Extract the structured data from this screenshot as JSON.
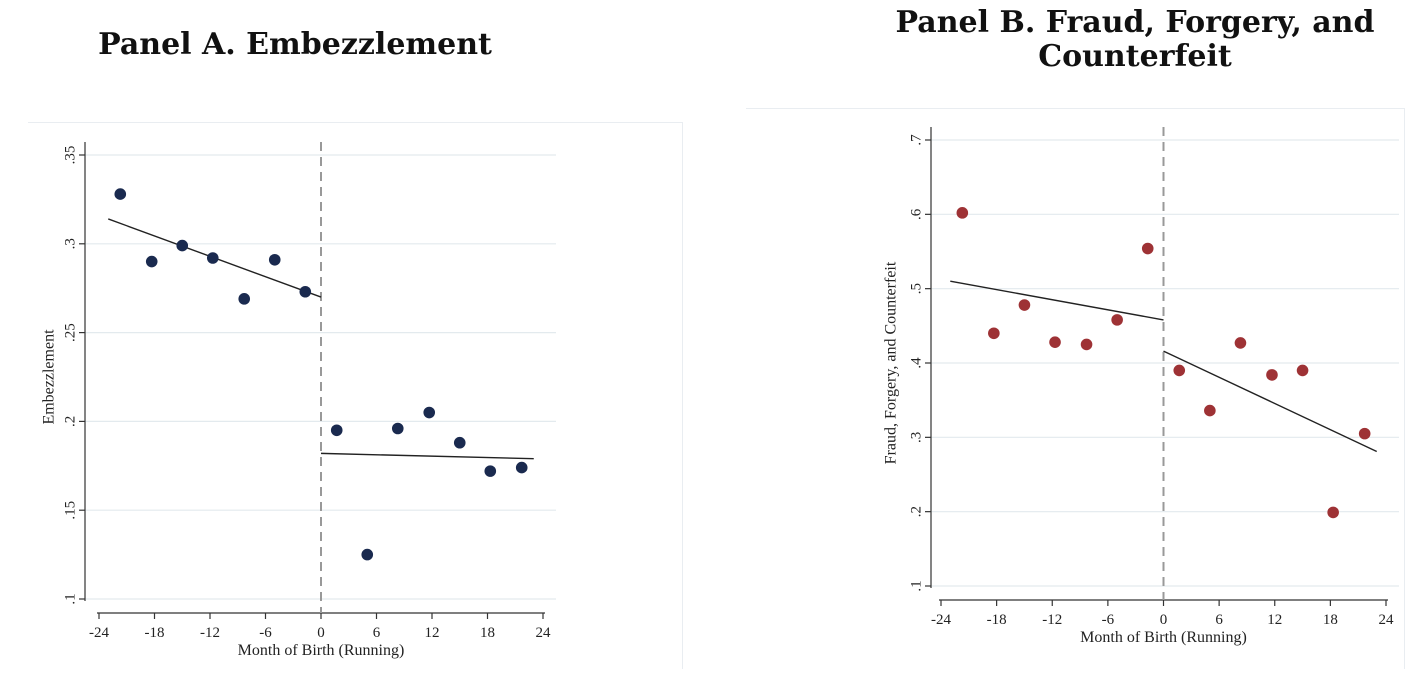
{
  "panels": {
    "a": {
      "title": "Panel A. Embezzlement"
    },
    "b": {
      "title_line1": "Panel B. Fraud, Forgery, and",
      "title_line2": "Counterfeit"
    }
  },
  "chart_data": [
    {
      "type": "scatter",
      "panel": "a",
      "title": "Panel A. Embezzlement",
      "xlabel": "Month of Birth (Running)",
      "ylabel": "Embezzlement",
      "xlim": [
        -24,
        24
      ],
      "ylim": [
        0.1,
        0.35
      ],
      "xticks": [
        -24,
        -18,
        -12,
        -6,
        0,
        6,
        12,
        18,
        24
      ],
      "xtick_labels": [
        "-24",
        "-18",
        "-12",
        "-6",
        "0",
        "6",
        "12",
        "18",
        "24"
      ],
      "yticks": [
        0.1,
        0.15,
        0.2,
        0.25,
        0.3,
        0.35
      ],
      "ytick_labels": [
        ".1",
        ".15",
        ".2",
        ".25",
        ".3",
        ".35"
      ],
      "grid": "horizontal",
      "cutoff_line": 0,
      "marker_color": "#1a2a4f",
      "points": {
        "x": [
          -21.7,
          -18.3,
          -15,
          -11.7,
          -8.3,
          -5,
          -1.7,
          1.7,
          5,
          8.3,
          11.7,
          15,
          18.3,
          21.7
        ],
        "y": [
          0.328,
          0.29,
          0.299,
          0.292,
          0.269,
          0.291,
          0.273,
          0.195,
          0.125,
          0.196,
          0.205,
          0.188,
          0.172,
          0.174
        ]
      },
      "fit_lines": [
        {
          "x": [
            -23,
            0
          ],
          "y": [
            0.314,
            0.27
          ]
        },
        {
          "x": [
            0,
            23
          ],
          "y": [
            0.182,
            0.179
          ]
        }
      ]
    },
    {
      "type": "scatter",
      "panel": "b",
      "title": "Panel B. Fraud, Forgery, and Counterfeit",
      "xlabel": "Month of Birth (Running)",
      "ylabel": "Fraud, Forgery, and Counterfeit",
      "xlim": [
        -24,
        24
      ],
      "ylim": [
        0.1,
        0.7
      ],
      "xticks": [
        -24,
        -18,
        -12,
        -6,
        0,
        6,
        12,
        18,
        24
      ],
      "xtick_labels": [
        "-24",
        "-18",
        "-12",
        "-6",
        "0",
        "6",
        "12",
        "18",
        "24"
      ],
      "yticks": [
        0.1,
        0.2,
        0.3,
        0.4,
        0.5,
        0.6,
        0.7
      ],
      "ytick_labels": [
        ".1",
        ".2",
        ".3",
        ".4",
        ".5",
        ".6",
        ".7"
      ],
      "grid": "horizontal",
      "cutoff_line": 0,
      "marker_color": "#9e3235",
      "points": {
        "x": [
          -21.7,
          -18.3,
          -15,
          -11.7,
          -8.3,
          -5,
          -1.7,
          1.7,
          5,
          8.3,
          11.7,
          15,
          18.3,
          21.7
        ],
        "y": [
          0.602,
          0.44,
          0.478,
          0.428,
          0.425,
          0.458,
          0.554,
          0.39,
          0.336,
          0.427,
          0.384,
          0.39,
          0.199,
          0.305
        ]
      },
      "fit_lines": [
        {
          "x": [
            -23,
            0
          ],
          "y": [
            0.51,
            0.458
          ]
        },
        {
          "x": [
            0,
            23
          ],
          "y": [
            0.416,
            0.281
          ]
        }
      ]
    }
  ]
}
